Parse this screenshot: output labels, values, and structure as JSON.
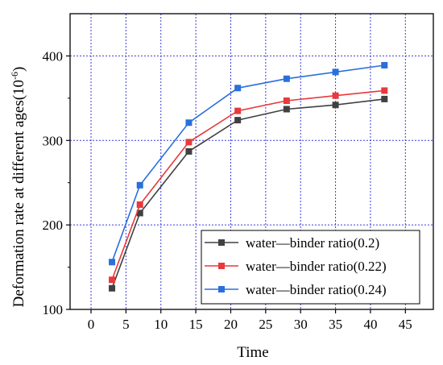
{
  "chart_data": {
    "type": "line",
    "title": "",
    "xlabel": "Time",
    "ylabel": "Deformation rate at different ages(10",
    "ylabel_exponent": "-6",
    "ylabel_close": ")",
    "xlim": [
      -3,
      49
    ],
    "ylim": [
      100,
      450
    ],
    "xticks": [
      0,
      5,
      10,
      15,
      20,
      25,
      30,
      35,
      40,
      45
    ],
    "yticks": [
      100,
      200,
      300,
      400
    ],
    "grid": true,
    "legend_position": "bottom-right",
    "x": [
      3,
      7,
      14,
      21,
      28,
      35,
      42
    ],
    "series": [
      {
        "name": "water—binder ratio(0.2)",
        "color": "#404040",
        "values": [
          125,
          214,
          287,
          324,
          337,
          342,
          349
        ]
      },
      {
        "name": "water—binder ratio(0.22)",
        "color": "#e8393b",
        "values": [
          135,
          224,
          298,
          335,
          347,
          353,
          359
        ]
      },
      {
        "name": "water—binder ratio(0.24)",
        "color": "#2a6fdb",
        "values": [
          156,
          247,
          321,
          362,
          373,
          381,
          389
        ]
      }
    ]
  }
}
